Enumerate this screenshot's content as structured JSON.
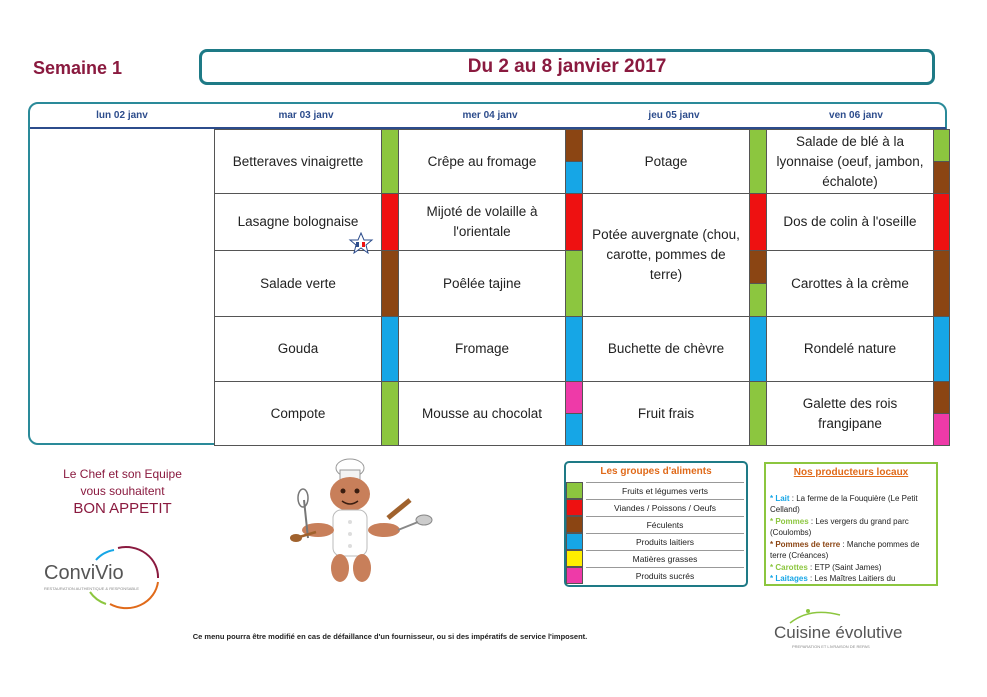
{
  "header": {
    "week_label": "Semaine 1",
    "date_range": "Du 2 au 8 janvier 2017"
  },
  "days": [
    {
      "label": "lun 02 janv"
    },
    {
      "label": "mar 03 janv"
    },
    {
      "label": "mer 04 janv"
    },
    {
      "label": "jeu 05 janv"
    },
    {
      "label": "ven 06 janv"
    }
  ],
  "menu": {
    "tue": [
      "Betteraves vinaigrette",
      "Lasagne bolognaise",
      "Salade verte",
      "Gouda",
      "Compote"
    ],
    "wed": [
      "Crêpe au fromage",
      "Mijoté de volaille à l'orientale",
      "Poêlée tajine",
      "Fromage",
      "Mousse au chocolat"
    ],
    "thu": [
      "Potage",
      "Potée auvergnate (chou, carotte, pommes de terre)",
      "Buchette de chèvre",
      "Fruit frais"
    ],
    "fri": [
      "Salade de blé à la lyonnaise (oeuf, jambon, échalote)",
      "Dos de colin à l'oseille",
      "Carottes à la crème",
      "Rondelé nature",
      "Galette des rois frangipane"
    ]
  },
  "signature": {
    "line1": "Le Chef et son Equipe",
    "line2": "vous souhaitent",
    "line3": "BON APPETIT"
  },
  "logos": {
    "convivio": "ConviVio",
    "convivio_tagline": "RESTAURATION AUTHENTIQUE & RESPONSABLE",
    "cuisine": "Cuisine évolutive",
    "cuisine_tagline": "PREPARATION ET LIVRAISON DE REPAS"
  },
  "legend": {
    "title": "Les groupes d'aliments",
    "items": [
      {
        "label": "Fruits et légumes verts",
        "color": "#8cc63f"
      },
      {
        "label": "Viandes / Poissons / Oeufs",
        "color": "#ee1111"
      },
      {
        "label": "Féculents",
        "color": "#8b4513"
      },
      {
        "label": "Produits laitiers",
        "color": "#16a6e6"
      },
      {
        "label": "Matières grasses",
        "color": "#ffee00"
      },
      {
        "label": "Produits sucrés",
        "color": "#ee3aa8"
      }
    ]
  },
  "producers": {
    "title": "Nos producteurs locaux",
    "items": [
      {
        "name": "* Lait",
        "text": " : La ferme de la Fouquière (Le Petit Celland)",
        "color": "#16a6e6"
      },
      {
        "name": "* Pommes",
        "text": " : Les vergers du grand parc (Coulombs)",
        "color": "#8cc63f"
      },
      {
        "name": "* Pommes de  terre",
        "text": " : Manche pommes de terre (Créances)",
        "color": "#8b4513"
      },
      {
        "name": "* Carottes",
        "text": " : ETP (Saint James)",
        "color": "#8cc63f"
      },
      {
        "name": "* Laitages",
        "text": " : Les Maîtres Laitiers du",
        "color": "#16a6e6"
      }
    ]
  },
  "footer": {
    "note": "Ce menu pourra être modifié en cas de défaillance d'un fournisseur, ou si des impératifs de service l'imposent."
  },
  "colors": {
    "title": "#8a1a3f",
    "frame": "#1e7a86",
    "header_text": "#2c4c8c"
  }
}
